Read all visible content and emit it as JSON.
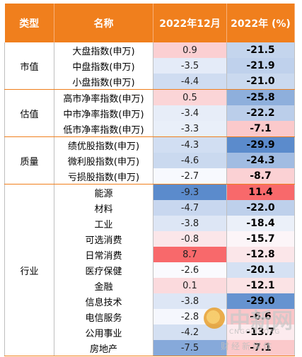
{
  "headers": [
    "类型",
    "名称",
    "2022年12月",
    "2022年 (%)"
  ],
  "groups": [
    {
      "category": "市值",
      "rows": [
        {
          "name": "大盘指数(申万)",
          "m": "0.9",
          "y": "-21.5"
        },
        {
          "name": "中盘指数(申万)",
          "m": "-3.5",
          "y": "-21.9"
        },
        {
          "name": "小盘指数(申万)",
          "m": "-4.4",
          "y": "-21.0"
        }
      ]
    },
    {
      "category": "估值",
      "rows": [
        {
          "name": "高市净率指数(申万)",
          "m": "0.5",
          "y": "-25.8"
        },
        {
          "name": "中市净率指数(申万)",
          "m": "-3.4",
          "y": "-22.2"
        },
        {
          "name": "低市净率指数(申万)",
          "m": "-3.3",
          "y": "-7.1"
        }
      ]
    },
    {
      "category": "质量",
      "rows": [
        {
          "name": "绩优股指数(申万)",
          "m": "-4.3",
          "y": "-29.9"
        },
        {
          "name": "微利股指数(申万)",
          "m": "-4.6",
          "y": "-24.3"
        },
        {
          "name": "亏损股指数(申万)",
          "m": "-2.7",
          "y": "-8.7"
        }
      ]
    },
    {
      "category": "行业",
      "rows": [
        {
          "name": "能源",
          "m": "-9.3",
          "y": "11.4"
        },
        {
          "name": "材料",
          "m": "-4.7",
          "y": "-22.0"
        },
        {
          "name": "工业",
          "m": "-3.8",
          "y": "-18.4"
        },
        {
          "name": "可选消费",
          "m": "-0.8",
          "y": "-15.7"
        },
        {
          "name": "日常消费",
          "m": "8.7",
          "y": "-12.8"
        },
        {
          "name": "医疗保健",
          "m": "-2.6",
          "y": "-20.1"
        },
        {
          "name": "金融",
          "m": "0.1",
          "y": "-12.1"
        },
        {
          "name": "信息技术",
          "m": "-3.8",
          "y": "-29.0"
        },
        {
          "name": "电信服务",
          "m": "-2.8",
          "y": "-6.6"
        },
        {
          "name": "公用事业",
          "m": "-4.2",
          "y": "-13.7"
        },
        {
          "name": "房地产",
          "m": "-7.5",
          "y": "-7.1"
        }
      ]
    }
  ],
  "watermark": {
    "cn": "中新网",
    "url": "CNGOLD.ORG",
    "sub": "财经新媒体"
  }
}
